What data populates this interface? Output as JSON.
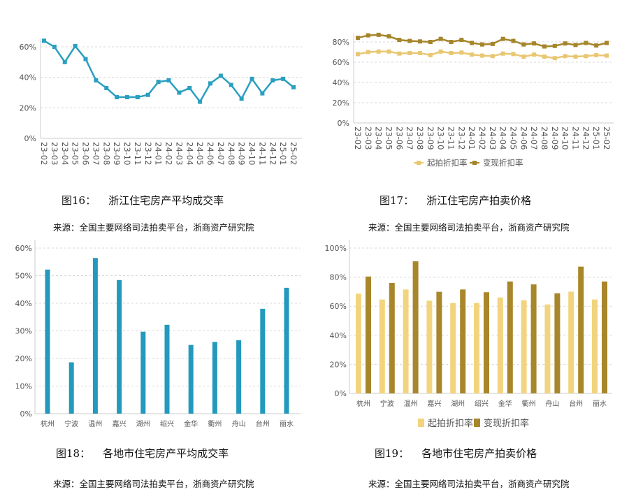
{
  "chart_data": [
    {
      "id": "fig16",
      "type": "line",
      "caption_number": "图16：",
      "caption_title": "浙江住宅房产平均成交率",
      "source": "来源：全国主要网络司法拍卖平台，浙商资产研究院",
      "categories": [
        "23-02",
        "23-03",
        "23-04",
        "23-05",
        "23-06",
        "23-07",
        "23-08",
        "23-09",
        "23-10",
        "23-11",
        "23-12",
        "24-01",
        "24-02",
        "24-03",
        "24-04",
        "24-05",
        "24-06",
        "24-07",
        "24-08",
        "24-09",
        "24-10",
        "24-11",
        "24-12",
        "25-01",
        "25-02"
      ],
      "series": [
        {
          "values": [
            64,
            60,
            50,
            60.5,
            52,
            38,
            33,
            27,
            27,
            27,
            28.5,
            37,
            38,
            30,
            33,
            24,
            36,
            41,
            35,
            26,
            39,
            29.5,
            38,
            39,
            33.5
          ],
          "color": "#2a9fc0"
        }
      ],
      "yticks": [
        "0%",
        "20%",
        "40%",
        "60%"
      ],
      "ylim": [
        0,
        60
      ],
      "grid": true
    },
    {
      "id": "fig17",
      "type": "line",
      "caption_number": "图17：",
      "caption_title": "浙江住宅房产拍卖价格",
      "source": "来源：全国主要网络司法拍卖平台，浙商资产研究院",
      "categories": [
        "23-02",
        "23-03",
        "23-04",
        "23-05",
        "23-06",
        "23-07",
        "23-08",
        "23-09",
        "23-10",
        "23-11",
        "23-12",
        "24-01",
        "24-02",
        "24-03",
        "24-04",
        "24-05",
        "24-06",
        "24-07",
        "24-08",
        "24-09",
        "24-10",
        "24-11",
        "24-12",
        "25-01",
        "25-02"
      ],
      "series": [
        {
          "name": "起拍折扣率",
          "values": [
            68,
            70,
            70.5,
            70.5,
            68.5,
            69,
            69,
            67,
            70.5,
            69,
            69.5,
            67.5,
            66.5,
            66,
            68.5,
            68,
            65.5,
            67.5,
            65.5,
            64,
            66,
            65.5,
            66,
            67,
            66.5
          ],
          "color": "#e9c772"
        },
        {
          "name": "变现折扣率",
          "values": [
            84,
            86.5,
            87,
            85.5,
            82,
            81,
            80.5,
            80,
            83,
            80,
            82,
            79,
            77.5,
            78,
            83,
            81,
            77.5,
            78.5,
            75.5,
            76,
            78.5,
            77,
            79,
            76.5,
            79
          ],
          "color": "#a5852a"
        }
      ],
      "yticks": [
        "0%",
        "20%",
        "40%",
        "60%",
        "80%"
      ],
      "ylim": [
        0,
        80
      ],
      "legend": "bottom",
      "grid": true
    },
    {
      "id": "fig18",
      "type": "bar",
      "caption_number": "图18：",
      "caption_title": "各地市住宅房产平均成交率",
      "source": "来源：全国主要网络司法拍卖平台，浙商资产研究院",
      "categories": [
        "杭州",
        "宁波",
        "温州",
        "嘉兴",
        "湖州",
        "绍兴",
        "金华",
        "衢州",
        "舟山",
        "台州",
        "丽水"
      ],
      "series": [
        {
          "values": [
            52.2,
            18.6,
            56.4,
            48.4,
            29.7,
            32.2,
            24.9,
            26,
            26.6,
            38,
            45.6
          ],
          "color": "#2399bd"
        }
      ],
      "yticks": [
        "0%",
        "10%",
        "20%",
        "30%",
        "40%",
        "50%",
        "60%"
      ],
      "ylim": [
        0,
        60
      ],
      "grid": true
    },
    {
      "id": "fig19",
      "type": "bar",
      "caption_number": "图19：",
      "caption_title": "各地市住宅房产拍卖价格",
      "source": "来源：全国主要网络司法拍卖平台，浙商资产研究院",
      "categories": [
        "杭州",
        "宁波",
        "温州",
        "嘉兴",
        "湖州",
        "绍兴",
        "金华",
        "衢州",
        "舟山",
        "台州",
        "丽水"
      ],
      "series": [
        {
          "name": "起拍折扣率",
          "values": [
            68.6,
            64.6,
            71.5,
            63.8,
            62.2,
            62.2,
            66,
            64.1,
            61.2,
            70,
            64.6
          ],
          "color": "#f3d47e"
        },
        {
          "name": "变现折扣率",
          "values": [
            80.4,
            76,
            90.9,
            69.9,
            71.5,
            69.6,
            77,
            75,
            68.9,
            87.2,
            77
          ],
          "color": "#a8862a"
        }
      ],
      "yticks": [
        "0%",
        "20%",
        "40%",
        "60%",
        "80%",
        "100%"
      ],
      "ylim": [
        0,
        100
      ],
      "legend": "bottom",
      "grid": true
    }
  ]
}
